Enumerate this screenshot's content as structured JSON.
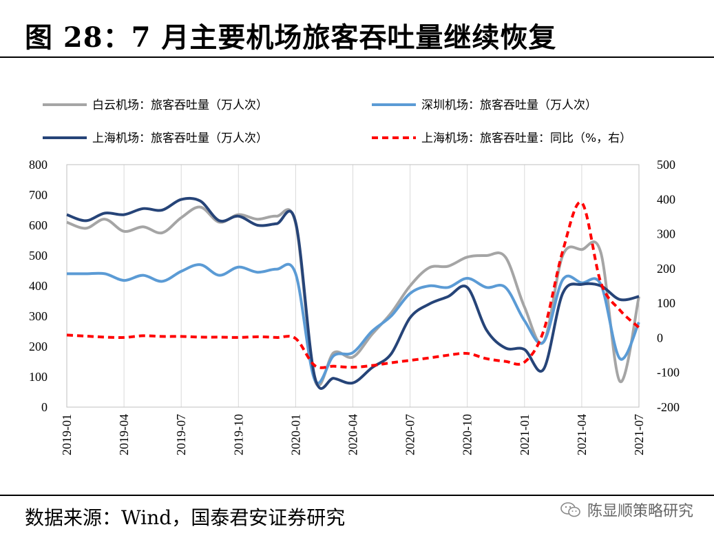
{
  "header": {
    "title": "图 28：7 月主要机场旅客吞吐量继续恢复"
  },
  "footer": {
    "source": "数据来源：Wind，国泰君安证券研究"
  },
  "watermark": {
    "text": "陈显顺策略研究",
    "icon": "wechat-icon"
  },
  "chart_data": {
    "type": "line",
    "x": [
      "2019-01",
      "2019-02",
      "2019-03",
      "2019-04",
      "2019-05",
      "2019-06",
      "2019-07",
      "2019-08",
      "2019-09",
      "2019-10",
      "2019-11",
      "2019-12",
      "2020-01",
      "2020-02",
      "2020-03",
      "2020-04",
      "2020-05",
      "2020-06",
      "2020-07",
      "2020-08",
      "2020-09",
      "2020-10",
      "2020-11",
      "2020-12",
      "2021-01",
      "2021-02",
      "2021-03",
      "2021-04",
      "2021-05",
      "2021-06",
      "2021-07"
    ],
    "xticks": [
      "2019-01",
      "2019-04",
      "2019-07",
      "2019-10",
      "2020-01",
      "2020-04",
      "2020-07",
      "2020-10",
      "2021-01",
      "2021-04",
      "2021-07"
    ],
    "y_left": {
      "ylim": [
        0,
        800
      ],
      "ticks": [
        "0",
        "100",
        "200",
        "300",
        "400",
        "500",
        "600",
        "700",
        "800"
      ]
    },
    "y_right": {
      "ylim": [
        -200,
        500
      ],
      "ticks": [
        "-200",
        "-100",
        "0",
        "100",
        "200",
        "300",
        "400",
        "500"
      ]
    },
    "grid": "vertical",
    "legend": "top",
    "series": [
      {
        "name": "白云机场：旅客吞吐量（万人次）",
        "axis": "left",
        "color": "#a5a5a5",
        "style": "solid",
        "values": [
          610,
          590,
          620,
          580,
          595,
          575,
          625,
          660,
          610,
          635,
          620,
          630,
          605,
          90,
          180,
          165,
          240,
          310,
          400,
          460,
          465,
          495,
          500,
          495,
          330,
          215,
          500,
          520,
          510,
          85,
          365
        ]
      },
      {
        "name": "深圳机场：旅客吞吐量（万人次）",
        "axis": "left",
        "color": "#5b9bd5",
        "style": "solid",
        "values": [
          440,
          440,
          440,
          418,
          435,
          415,
          448,
          470,
          435,
          462,
          445,
          455,
          440,
          90,
          170,
          180,
          250,
          300,
          375,
          400,
          395,
          425,
          395,
          395,
          285,
          215,
          420,
          410,
          405,
          160,
          280
        ]
      },
      {
        "name": "上海机场：旅客吞吐量（万人次）",
        "axis": "left",
        "color": "#264478",
        "style": "solid",
        "values": [
          635,
          615,
          640,
          635,
          655,
          650,
          685,
          680,
          615,
          630,
          600,
          605,
          610,
          100,
          95,
          80,
          130,
          175,
          295,
          340,
          365,
          395,
          255,
          195,
          190,
          125,
          375,
          405,
          400,
          355,
          365
        ]
      },
      {
        "name": "上海机场：旅客吞吐量：同比（%，右）",
        "axis": "right",
        "color": "#ff0000",
        "style": "dashed",
        "values": [
          8,
          5,
          2,
          1,
          6,
          4,
          4,
          2,
          2,
          1,
          3,
          1,
          -2,
          -80,
          -82,
          -85,
          -80,
          -72,
          -65,
          -58,
          -50,
          -45,
          -60,
          -68,
          -70,
          20,
          250,
          390,
          160,
          80,
          30
        ]
      }
    ]
  }
}
